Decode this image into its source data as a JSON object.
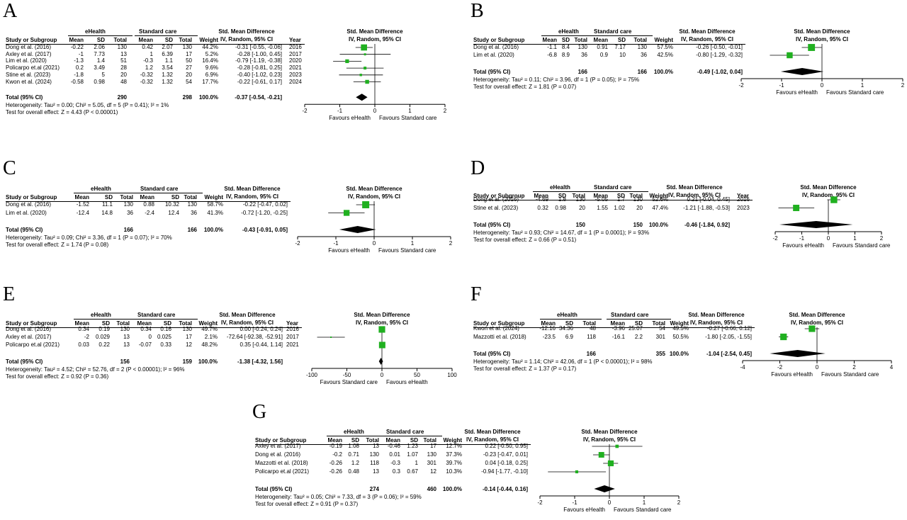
{
  "colors": {
    "marker": "#20b020",
    "diamond": "#000000",
    "text": "#000000"
  },
  "headers": {
    "study": "Study or Subgroup",
    "mean": "Mean",
    "sd": "SD",
    "total": "Total",
    "weight": "Weight",
    "effect_title": "Std. Mean Difference",
    "effect_method": "IV, Random, 95% CI",
    "year": "Year",
    "total_row": "Total (95% CI)"
  },
  "chart_data": [
    {
      "panel": "A",
      "type": "forest",
      "groups": [
        "eHealth",
        "Standard care"
      ],
      "has_year": true,
      "studies": [
        {
          "study": "Dong et al. (2016)",
          "m1": "-0.22",
          "sd1": "2.06",
          "n1": "130",
          "m2": "0.42",
          "sd2": "2.07",
          "n2": "130",
          "weight": "44.2%",
          "ci_text": "-0.31 [-0.55, -0.06]",
          "year": "2016",
          "est": -0.31,
          "lo": -0.55,
          "hi": -0.06,
          "w": 44.2
        },
        {
          "study": "Axley et al. (2017)",
          "m1": "-1",
          "sd1": "7.73",
          "n1": "13",
          "m2": "1",
          "sd2": "6.39",
          "n2": "17",
          "weight": "5.2%",
          "ci_text": "-0.28 [-1.00, 0.45]",
          "year": "2017",
          "est": -0.28,
          "lo": -1.0,
          "hi": 0.45,
          "w": 5.2
        },
        {
          "study": "Lim et al. (2020)",
          "m1": "-1.3",
          "sd1": "1.4",
          "n1": "51",
          "m2": "-0.3",
          "sd2": "1.1",
          "n2": "50",
          "weight": "16.4%",
          "ci_text": "-0.79 [-1.19, -0.38]",
          "year": "2020",
          "est": -0.79,
          "lo": -1.19,
          "hi": -0.38,
          "w": 16.4
        },
        {
          "study": "Policarpo et.al (2021)",
          "m1": "0.2",
          "sd1": "3.49",
          "n1": "28",
          "m2": "1.2",
          "sd2": "3.54",
          "n2": "27",
          "weight": "9.6%",
          "ci_text": "-0.28 [-0.81, 0.25]",
          "year": "2021",
          "est": -0.28,
          "lo": -0.81,
          "hi": 0.25,
          "w": 9.6
        },
        {
          "study": "Stine et al. (2023)",
          "m1": "-1.8",
          "sd1": "5",
          "n1": "20",
          "m2": "-0.32",
          "sd2": "1.32",
          "n2": "20",
          "weight": "6.9%",
          "ci_text": "-0.40 [-1.02, 0.23]",
          "year": "2023",
          "est": -0.4,
          "lo": -1.02,
          "hi": 0.23,
          "w": 6.9
        },
        {
          "study": "Kwon et al. (2024)",
          "m1": "-0.58",
          "sd1": "0.98",
          "n1": "48",
          "m2": "-0.32",
          "sd2": "1.32",
          "n2": "54",
          "weight": "17.7%",
          "ci_text": "-0.22 [-0.61, 0.17]",
          "year": "2024",
          "est": -0.22,
          "lo": -0.61,
          "hi": 0.17,
          "w": 17.7
        }
      ],
      "total": {
        "n1": "290",
        "n2": "298",
        "weight": "100.0%",
        "ci_text": "-0.37 [-0.54, -0.21]",
        "est": -0.37,
        "lo": -0.54,
        "hi": -0.21
      },
      "heterogeneity": "Heterogeneity: Tau² = 0.00; Chi² = 5.05, df = 5 (P = 0.41); I² = 1%",
      "overall": "Test for overall effect: Z = 4.43 (P < 0.00001)",
      "xlim": [
        -2,
        2
      ],
      "ticks": [
        -2,
        -1,
        0,
        1,
        2
      ],
      "favours_left": "Favours eHealth",
      "favours_right": "Favours Standard care"
    },
    {
      "panel": "B",
      "type": "forest",
      "groups": [
        "eHealth",
        "Standard care"
      ],
      "has_year": false,
      "studies": [
        {
          "study": "Dong et al. (2016)",
          "m1": "-1.1",
          "sd1": "8.4",
          "n1": "130",
          "m2": "0.91",
          "sd2": "7.17",
          "n2": "130",
          "weight": "57.5%",
          "ci_text": "-0.26 [-0.50, -0.01]",
          "est": -0.26,
          "lo": -0.5,
          "hi": -0.01,
          "w": 57.5
        },
        {
          "study": "Lim et al. (2020)",
          "m1": "-6.8",
          "sd1": "8.9",
          "n1": "36",
          "m2": "0.9",
          "sd2": "10",
          "n2": "36",
          "weight": "42.5%",
          "ci_text": "-0.80 [-1.29, -0.32]",
          "est": -0.8,
          "lo": -1.29,
          "hi": -0.32,
          "w": 42.5
        }
      ],
      "total": {
        "n1": "166",
        "n2": "166",
        "weight": "100.0%",
        "ci_text": "-0.49 [-1.02, 0.04]",
        "est": -0.49,
        "lo": -1.02,
        "hi": 0.04
      },
      "heterogeneity": "Heterogeneity: Tau² = 0.11; Chi² = 3.96, df = 1 (P = 0.05); I² = 75%",
      "overall": "Test for overall effect: Z = 1.81 (P = 0.07)",
      "xlim": [
        -2,
        2
      ],
      "ticks": [
        -2,
        -1,
        0,
        1,
        2
      ],
      "favours_left": "Favours eHealth",
      "favours_right": "Favours Standard care"
    },
    {
      "panel": "C",
      "type": "forest",
      "groups": [
        "eHealth",
        "Standard care"
      ],
      "has_year": false,
      "studies": [
        {
          "study": "Dong et al. (2016)",
          "m1": "-1.52",
          "sd1": "11.1",
          "n1": "130",
          "m2": "0.88",
          "sd2": "10.32",
          "n2": "130",
          "weight": "58.7%",
          "ci_text": "-0.22 [-0.47, 0.02]",
          "est": -0.22,
          "lo": -0.47,
          "hi": 0.02,
          "w": 58.7
        },
        {
          "study": "Lim et al. (2020)",
          "m1": "-12.4",
          "sd1": "14.8",
          "n1": "36",
          "m2": "-2.4",
          "sd2": "12.4",
          "n2": "36",
          "weight": "41.3%",
          "ci_text": "-0.72 [-1.20, -0.25]",
          "est": -0.72,
          "lo": -1.2,
          "hi": -0.25,
          "w": 41.3
        }
      ],
      "total": {
        "n1": "166",
        "n2": "166",
        "weight": "100.0%",
        "ci_text": "-0.43 [-0.91, 0.05]",
        "est": -0.43,
        "lo": -0.91,
        "hi": 0.05
      },
      "heterogeneity": "Heterogeneity: Tau² = 0.09; Chi² = 3.36, df = 1 (P = 0.07); I² = 70%",
      "overall": "Test for overall effect: Z = 1.74 (P = 0.08)",
      "xlim": [
        -2,
        2
      ],
      "ticks": [
        -2,
        -1,
        0,
        1,
        2
      ],
      "favours_left": "Favours eHealth",
      "favours_right": "Favours Standard care"
    },
    {
      "panel": "D",
      "type": "forest",
      "groups": [
        "eHealth",
        "Standard care"
      ],
      "has_year": true,
      "studies": [
        {
          "study": "Dong et al. (2016)",
          "m1": "-4.69",
          "sd1": "1.8",
          "n1": "130",
          "m2": "-5.05",
          "sd2": "1.7",
          "n2": "130",
          "weight": "52.6%",
          "ci_text": "0.21 [-0.04, 0.45]",
          "year": "2016",
          "est": 0.21,
          "lo": -0.04,
          "hi": 0.45,
          "w": 52.6
        },
        {
          "study": "Stine et al. (2023)",
          "m1": "0.32",
          "sd1": "0.98",
          "n1": "20",
          "m2": "1.55",
          "sd2": "1.02",
          "n2": "20",
          "weight": "47.4%",
          "ci_text": "-1.21 [-1.88, -0.53]",
          "year": "2023",
          "est": -1.21,
          "lo": -1.88,
          "hi": -0.53,
          "w": 47.4
        }
      ],
      "total": {
        "n1": "150",
        "n2": "150",
        "weight": "100.0%",
        "ci_text": "-0.46 [-1.84, 0.92]",
        "est": -0.46,
        "lo": -1.84,
        "hi": 0.92
      },
      "heterogeneity": "Heterogeneity: Tau² = 0.93; Chi² = 14.67, df = 1 (P = 0.0001); I² = 93%",
      "overall": "Test for overall effect: Z = 0.66 (P = 0.51)",
      "xlim": [
        -2,
        2
      ],
      "ticks": [
        -2,
        -1,
        0,
        1,
        2
      ],
      "favours_left": "Favours eHealth",
      "favours_right": "Favours Standard care"
    },
    {
      "panel": "E",
      "type": "forest",
      "groups": [
        "eHealth",
        "Standard care"
      ],
      "has_year": true,
      "studies": [
        {
          "study": "Dong et al. (2016)",
          "m1": "0.34",
          "sd1": "0.19",
          "n1": "130",
          "m2": "0.34",
          "sd2": "0.16",
          "n2": "130",
          "weight": "49.7%",
          "ci_text": "0.00 [-0.24, 0.24]",
          "year": "2016",
          "est": 0.0,
          "lo": -0.24,
          "hi": 0.24,
          "w": 49.7
        },
        {
          "study": "Axley et al. (2017)",
          "m1": "-2",
          "sd1": "0.029",
          "n1": "13",
          "m2": "0",
          "sd2": "0.025",
          "n2": "17",
          "weight": "2.1%",
          "ci_text": "-72.64 [-92.38, -52.91]",
          "year": "2017",
          "est": -72.64,
          "lo": -92.38,
          "hi": -52.91,
          "w": 2.1
        },
        {
          "study": "Policarpo et.al (2021)",
          "m1": "0.03",
          "sd1": "0.22",
          "n1": "13",
          "m2": "-0.07",
          "sd2": "0.33",
          "n2": "12",
          "weight": "48.2%",
          "ci_text": "0.35 [-0.44, 1.14]",
          "year": "2021",
          "est": 0.35,
          "lo": -0.44,
          "hi": 1.14,
          "w": 48.2
        }
      ],
      "total": {
        "n1": "156",
        "n2": "159",
        "weight": "100.0%",
        "ci_text": "-1.38 [-4.32, 1.56]",
        "est": -1.38,
        "lo": -4.32,
        "hi": 1.56
      },
      "heterogeneity": "Heterogeneity: Tau² = 4.52; Chi² = 52.76, df = 2 (P < 0.00001); I² = 96%",
      "overall": "Test for overall effect: Z = 0.92 (P = 0.36)",
      "xlim": [
        -100,
        100
      ],
      "ticks": [
        -100,
        -50,
        0,
        50,
        100
      ],
      "favours_left": "Favours Standard care",
      "favours_right": "Favours eHealth"
    },
    {
      "panel": "F",
      "type": "forest",
      "groups": [
        "eHealth",
        "Standard care"
      ],
      "has_year": false,
      "studies": [
        {
          "study": "Kwon et al. (2024)",
          "m1": "-12.16",
          "sd1": "34.36",
          "n1": "48",
          "m2": "-3.96",
          "sd2": "25.07",
          "n2": "54",
          "weight": "49.5%",
          "ci_text": "-0.27 [-0.66, 0.12]",
          "est": -0.27,
          "lo": -0.66,
          "hi": 0.12,
          "w": 49.5
        },
        {
          "study": "Mazzotti et al. (2018)",
          "m1": "-23.5",
          "sd1": "6.9",
          "n1": "118",
          "m2": "-16.1",
          "sd2": "2.2",
          "n2": "301",
          "weight": "50.5%",
          "ci_text": "-1.80 [-2.05, -1.55]",
          "est": -1.8,
          "lo": -2.05,
          "hi": -1.55,
          "w": 50.5
        }
      ],
      "total": {
        "n1": "166",
        "n2": "355",
        "weight": "100.0%",
        "ci_text": "-1.04 [-2.54, 0.45]",
        "est": -1.04,
        "lo": -2.54,
        "hi": 0.45
      },
      "heterogeneity": "Heterogeneity: Tau² = 1.14; Chi² = 42.06, df = 1 (P < 0.00001); I² = 98%",
      "overall": "Test for overall effect: Z = 1.37 (P = 0.17)",
      "xlim": [
        -4,
        4
      ],
      "ticks": [
        -4,
        -2,
        0,
        2,
        4
      ],
      "favours_left": "Favours eHealth",
      "favours_right": "Favours Standard care"
    },
    {
      "panel": "G",
      "type": "forest",
      "groups": [
        "eHealth",
        "Standard care"
      ],
      "has_year": false,
      "studies": [
        {
          "study": "Axley et al. (2017)",
          "m1": "-0.19",
          "sd1": "1.08",
          "n1": "13",
          "m2": "-0.46",
          "sd2": "1.23",
          "n2": "17",
          "weight": "12.7%",
          "ci_text": "0.22 [-0.50, 0.95]",
          "est": 0.22,
          "lo": -0.5,
          "hi": 0.95,
          "w": 12.7
        },
        {
          "study": "Dong et al. (2016)",
          "m1": "-0.2",
          "sd1": "0.71",
          "n1": "130",
          "m2": "0.01",
          "sd2": "1.07",
          "n2": "130",
          "weight": "37.3%",
          "ci_text": "-0.23 [-0.47, 0.01]",
          "est": -0.23,
          "lo": -0.47,
          "hi": 0.01,
          "w": 37.3
        },
        {
          "study": "Mazzotti et al. (2018)",
          "m1": "-0.26",
          "sd1": "1.2",
          "n1": "118",
          "m2": "-0.3",
          "sd2": "1",
          "n2": "301",
          "weight": "39.7%",
          "ci_text": "0.04 [-0.18, 0.25]",
          "est": 0.04,
          "lo": -0.18,
          "hi": 0.25,
          "w": 39.7
        },
        {
          "study": "Policarpo et.al (2021)",
          "m1": "-0.26",
          "sd1": "0.48",
          "n1": "13",
          "m2": "0.3",
          "sd2": "0.67",
          "n2": "12",
          "weight": "10.3%",
          "ci_text": "-0.94 [-1.77, -0.10]",
          "est": -0.94,
          "lo": -1.77,
          "hi": -0.1,
          "w": 10.3
        }
      ],
      "total": {
        "n1": "274",
        "n2": "460",
        "weight": "100.0%",
        "ci_text": "-0.14 [-0.44, 0.16]",
        "est": -0.14,
        "lo": -0.44,
        "hi": 0.16
      },
      "heterogeneity": "Heterogeneity: Tau² = 0.05; Chi² = 7.33, df = 3 (P = 0.06); I² = 59%",
      "overall": "Test for overall effect: Z = 0.91 (P = 0.37)",
      "xlim": [
        -2,
        2
      ],
      "ticks": [
        -2,
        -1,
        0,
        1,
        2
      ],
      "favours_left": "Favours eHealth",
      "favours_right": "Favours Standard care"
    }
  ]
}
